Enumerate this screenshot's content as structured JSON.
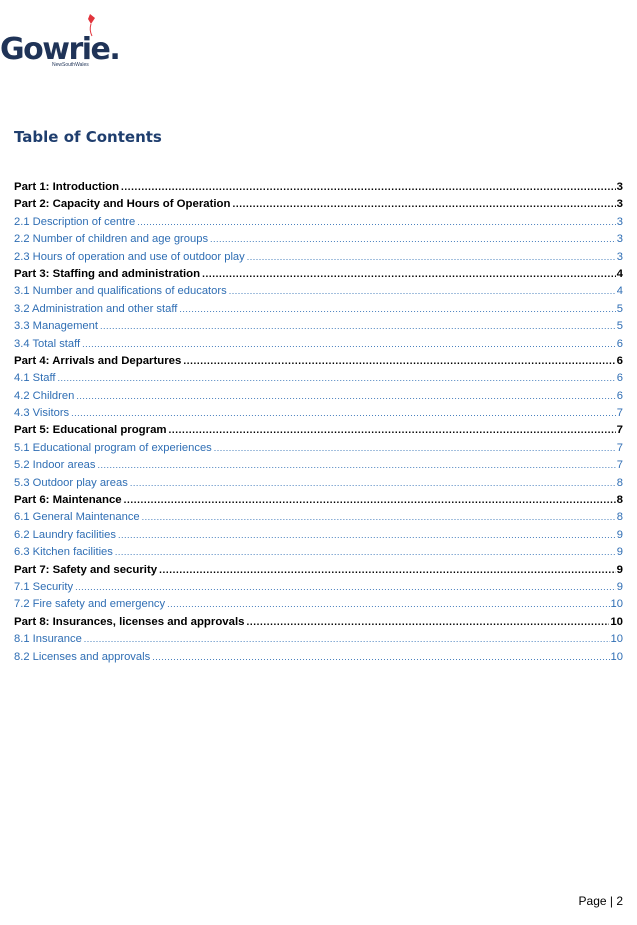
{
  "header": {
    "logo_word": "Gowrie.",
    "logo_sub": "NewSouthWales"
  },
  "toc": {
    "title": "Table of Contents",
    "entries": [
      {
        "label": "Part 1: Introduction",
        "page": "3",
        "kind": "part"
      },
      {
        "label": "Part 2: Capacity and Hours of Operation",
        "page": "3",
        "kind": "part"
      },
      {
        "label": "2.1 Description of centre",
        "page": "3",
        "kind": "sub"
      },
      {
        "label": "2.2 Number of children and age groups",
        "page": "3",
        "kind": "sub"
      },
      {
        "label": "2.3 Hours of operation and use of outdoor play",
        "page": "3",
        "kind": "sub"
      },
      {
        "label": "Part 3: Staffing and administration",
        "page": "4",
        "kind": "part"
      },
      {
        "label": "3.1 Number and qualifications of educators",
        "page": "4",
        "kind": "sub"
      },
      {
        "label": "3.2 Administration and other staff",
        "page": "5",
        "kind": "sub"
      },
      {
        "label": "3.3 Management",
        "page": "5",
        "kind": "sub"
      },
      {
        "label": "3.4 Total staff",
        "page": "6",
        "kind": "sub"
      },
      {
        "label": "Part 4: Arrivals and Departures",
        "page": "6",
        "kind": "part"
      },
      {
        "label": "4.1 Staff",
        "page": "6",
        "kind": "sub"
      },
      {
        "label": "4.2 Children",
        "page": "6",
        "kind": "sub"
      },
      {
        "label": "4.3 Visitors",
        "page": "7",
        "kind": "sub"
      },
      {
        "label": "Part 5: Educational program",
        "page": "7",
        "kind": "part"
      },
      {
        "label": "5.1 Educational program of experiences",
        "page": "7",
        "kind": "sub"
      },
      {
        "label": "5.2 Indoor areas",
        "page": "7",
        "kind": "sub"
      },
      {
        "label": "5.3 Outdoor play areas",
        "page": "8",
        "kind": "sub"
      },
      {
        "label": "Part 6: Maintenance",
        "page": "8",
        "kind": "part"
      },
      {
        "label": "6.1 General Maintenance",
        "page": "8",
        "kind": "sub"
      },
      {
        "label": "6.2 Laundry facilities",
        "page": "9",
        "kind": "sub"
      },
      {
        "label": "6.3 Kitchen facilities",
        "page": "9",
        "kind": "sub"
      },
      {
        "label": "Part 7: Safety and security",
        "page": "9",
        "kind": "part"
      },
      {
        "label": "7.1 Security",
        "page": "9",
        "kind": "sub"
      },
      {
        "label": "7.2 Fire safety and emergency",
        "page": "10",
        "kind": "sub"
      },
      {
        "label": "Part 8: Insurances, licenses and approvals",
        "page": "10",
        "kind": "part"
      },
      {
        "label": "8.1 Insurance",
        "page": "10",
        "kind": "sub"
      },
      {
        "label": "8.2 Licenses and approvals",
        "page": "10",
        "kind": "sub"
      }
    ]
  },
  "footer": {
    "page_label": "Page | 2"
  },
  "colors": {
    "heading": "#1f3e6e",
    "link": "#2f6eb4",
    "logo": "#1f3357",
    "logo_accent": "#e2343c"
  }
}
